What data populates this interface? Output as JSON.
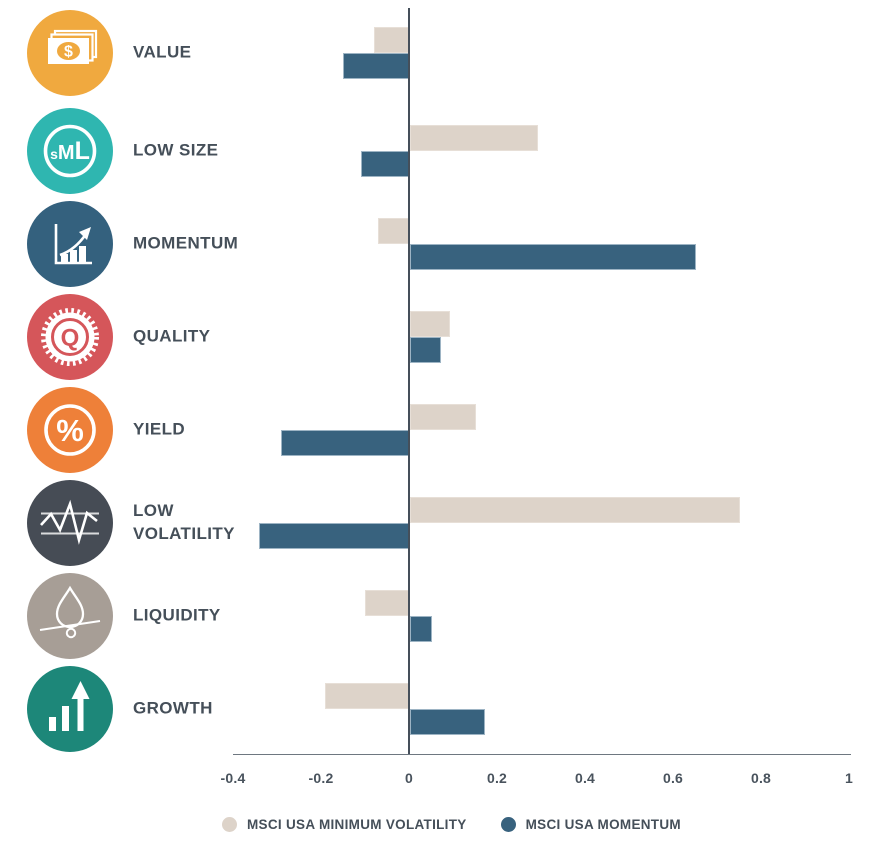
{
  "chart_data": {
    "type": "bar",
    "orientation": "horizontal",
    "title": "",
    "xlabel": "",
    "ylabel": "",
    "xlim": [
      -0.4,
      1.0
    ],
    "grid": false,
    "tick_labels": [
      "-0.4",
      "-0.2",
      "0",
      "0.2",
      "0.4",
      "0.6",
      "0.8",
      "1"
    ],
    "tick_values": [
      -0.4,
      -0.2,
      0,
      0.2,
      0.4,
      0.6,
      0.8,
      1
    ],
    "categories": [
      "VALUE",
      "LOW SIZE",
      "MOMENTUM",
      "QUALITY",
      "YIELD",
      "LOW VOLATILITY",
      "LIQUIDITY",
      "GROWTH"
    ],
    "series": [
      {
        "name": "MSCI USA MINIMUM VOLATILITY",
        "color": "#ddd3c9",
        "values": [
          -0.08,
          0.29,
          -0.07,
          0.09,
          0.15,
          0.75,
          -0.1,
          -0.19
        ]
      },
      {
        "name": "MSCI USA MOMENTUM",
        "color": "#38627e",
        "values": [
          -0.15,
          -0.11,
          0.65,
          0.07,
          -0.29,
          -0.34,
          0.05,
          0.17
        ]
      }
    ],
    "legend_position": "bottom"
  },
  "factors": [
    {
      "label": "VALUE",
      "icon": "money-icon",
      "color": "#f0a93f"
    },
    {
      "label": "LOW SIZE",
      "icon": "small-mid-large-icon",
      "color": "#2fb6b0"
    },
    {
      "label": "MOMENTUM",
      "icon": "rising-chart-icon",
      "color": "#34617e"
    },
    {
      "label": "QUALITY",
      "icon": "quality-seal-icon",
      "color": "#d5565a"
    },
    {
      "label": "YIELD",
      "icon": "percent-icon",
      "color": "#ee8039"
    },
    {
      "label": "LOW VOLATILITY",
      "icon": "volatility-wave-icon",
      "color": "#464c55"
    },
    {
      "label": "LIQUIDITY",
      "icon": "droplet-balance-icon",
      "color": "#a79e96"
    },
    {
      "label": "GROWTH",
      "icon": "growth-bars-icon",
      "color": "#1d8779"
    }
  ],
  "legend": [
    {
      "label": "MSCI USA MINIMUM VOLATILITY",
      "swatch": "#ddd3c9"
    },
    {
      "label": "MSCI USA MOMENTUM",
      "swatch": "#38627e"
    }
  ],
  "colors": {
    "label_text": "#454f59",
    "axis_line": "#6e7780",
    "zero_line": "#454f5a"
  }
}
